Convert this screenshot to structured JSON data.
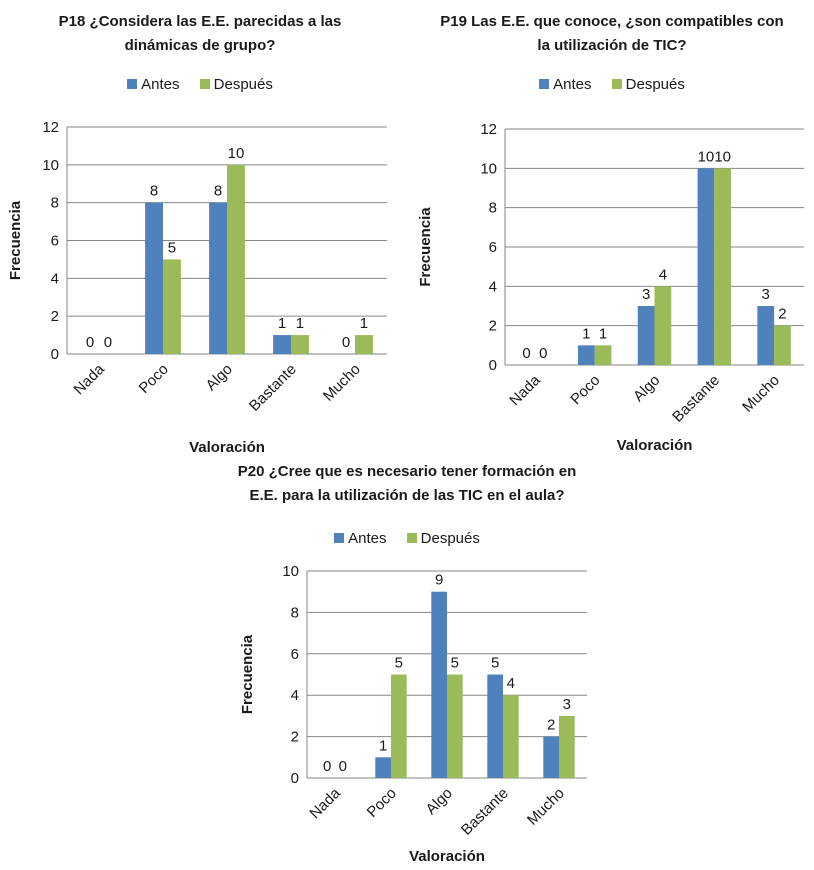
{
  "chart_data": [
    {
      "type": "bar",
      "title_lines": [
        "P18 ¿Considera las E.E. parecidas a las",
        "dinámicas de grupo?"
      ],
      "xlabel": "Valoración",
      "ylabel": "Frecuencia",
      "categories": [
        "Nada",
        "Poco",
        "Algo",
        "Bastante",
        "Mucho"
      ],
      "series": [
        {
          "name": "Antes",
          "values": [
            0,
            8,
            8,
            1,
            0
          ]
        },
        {
          "name": "Después",
          "values": [
            0,
            5,
            10,
            1,
            1
          ]
        }
      ],
      "ylim": [
        0,
        12
      ],
      "yticks": [
        0,
        2,
        4,
        6,
        8,
        10,
        12
      ],
      "grid": true,
      "legend": "top"
    },
    {
      "type": "bar",
      "title_lines": [
        "P19 Las E.E. que conoce, ¿son compatibles con",
        "la utilización de TIC?"
      ],
      "xlabel": "Valoración",
      "ylabel": "Frecuencia",
      "categories": [
        "Nada",
        "Poco",
        "Algo",
        "Bastante",
        "Mucho"
      ],
      "series": [
        {
          "name": "Antes",
          "values": [
            0,
            1,
            3,
            10,
            3
          ]
        },
        {
          "name": "Después",
          "values": [
            0,
            1,
            4,
            10,
            2
          ]
        }
      ],
      "ylim": [
        0,
        12
      ],
      "yticks": [
        0,
        2,
        4,
        6,
        8,
        10,
        12
      ],
      "grid": true,
      "legend": "top"
    },
    {
      "type": "bar",
      "title_lines": [
        "P20 ¿Cree que es necesario tener formación en",
        "E.E. para la utilización de las TIC en el aula?"
      ],
      "xlabel": "Valoración",
      "ylabel": "Frecuencia",
      "categories": [
        "Nada",
        "Poco",
        "Algo",
        "Bastante",
        "Mucho"
      ],
      "series": [
        {
          "name": "Antes",
          "values": [
            0,
            1,
            9,
            5,
            2
          ]
        },
        {
          "name": "Después",
          "values": [
            0,
            5,
            5,
            4,
            3
          ]
        }
      ],
      "ylim": [
        0,
        10
      ],
      "yticks": [
        0,
        2,
        4,
        6,
        8,
        10
      ],
      "grid": true,
      "legend": "top"
    }
  ],
  "colors": {
    "antes": "#4f81bd",
    "despues": "#9bbb59",
    "grid": "#868686",
    "axis": "#868686",
    "text": "#1a1a1a"
  }
}
